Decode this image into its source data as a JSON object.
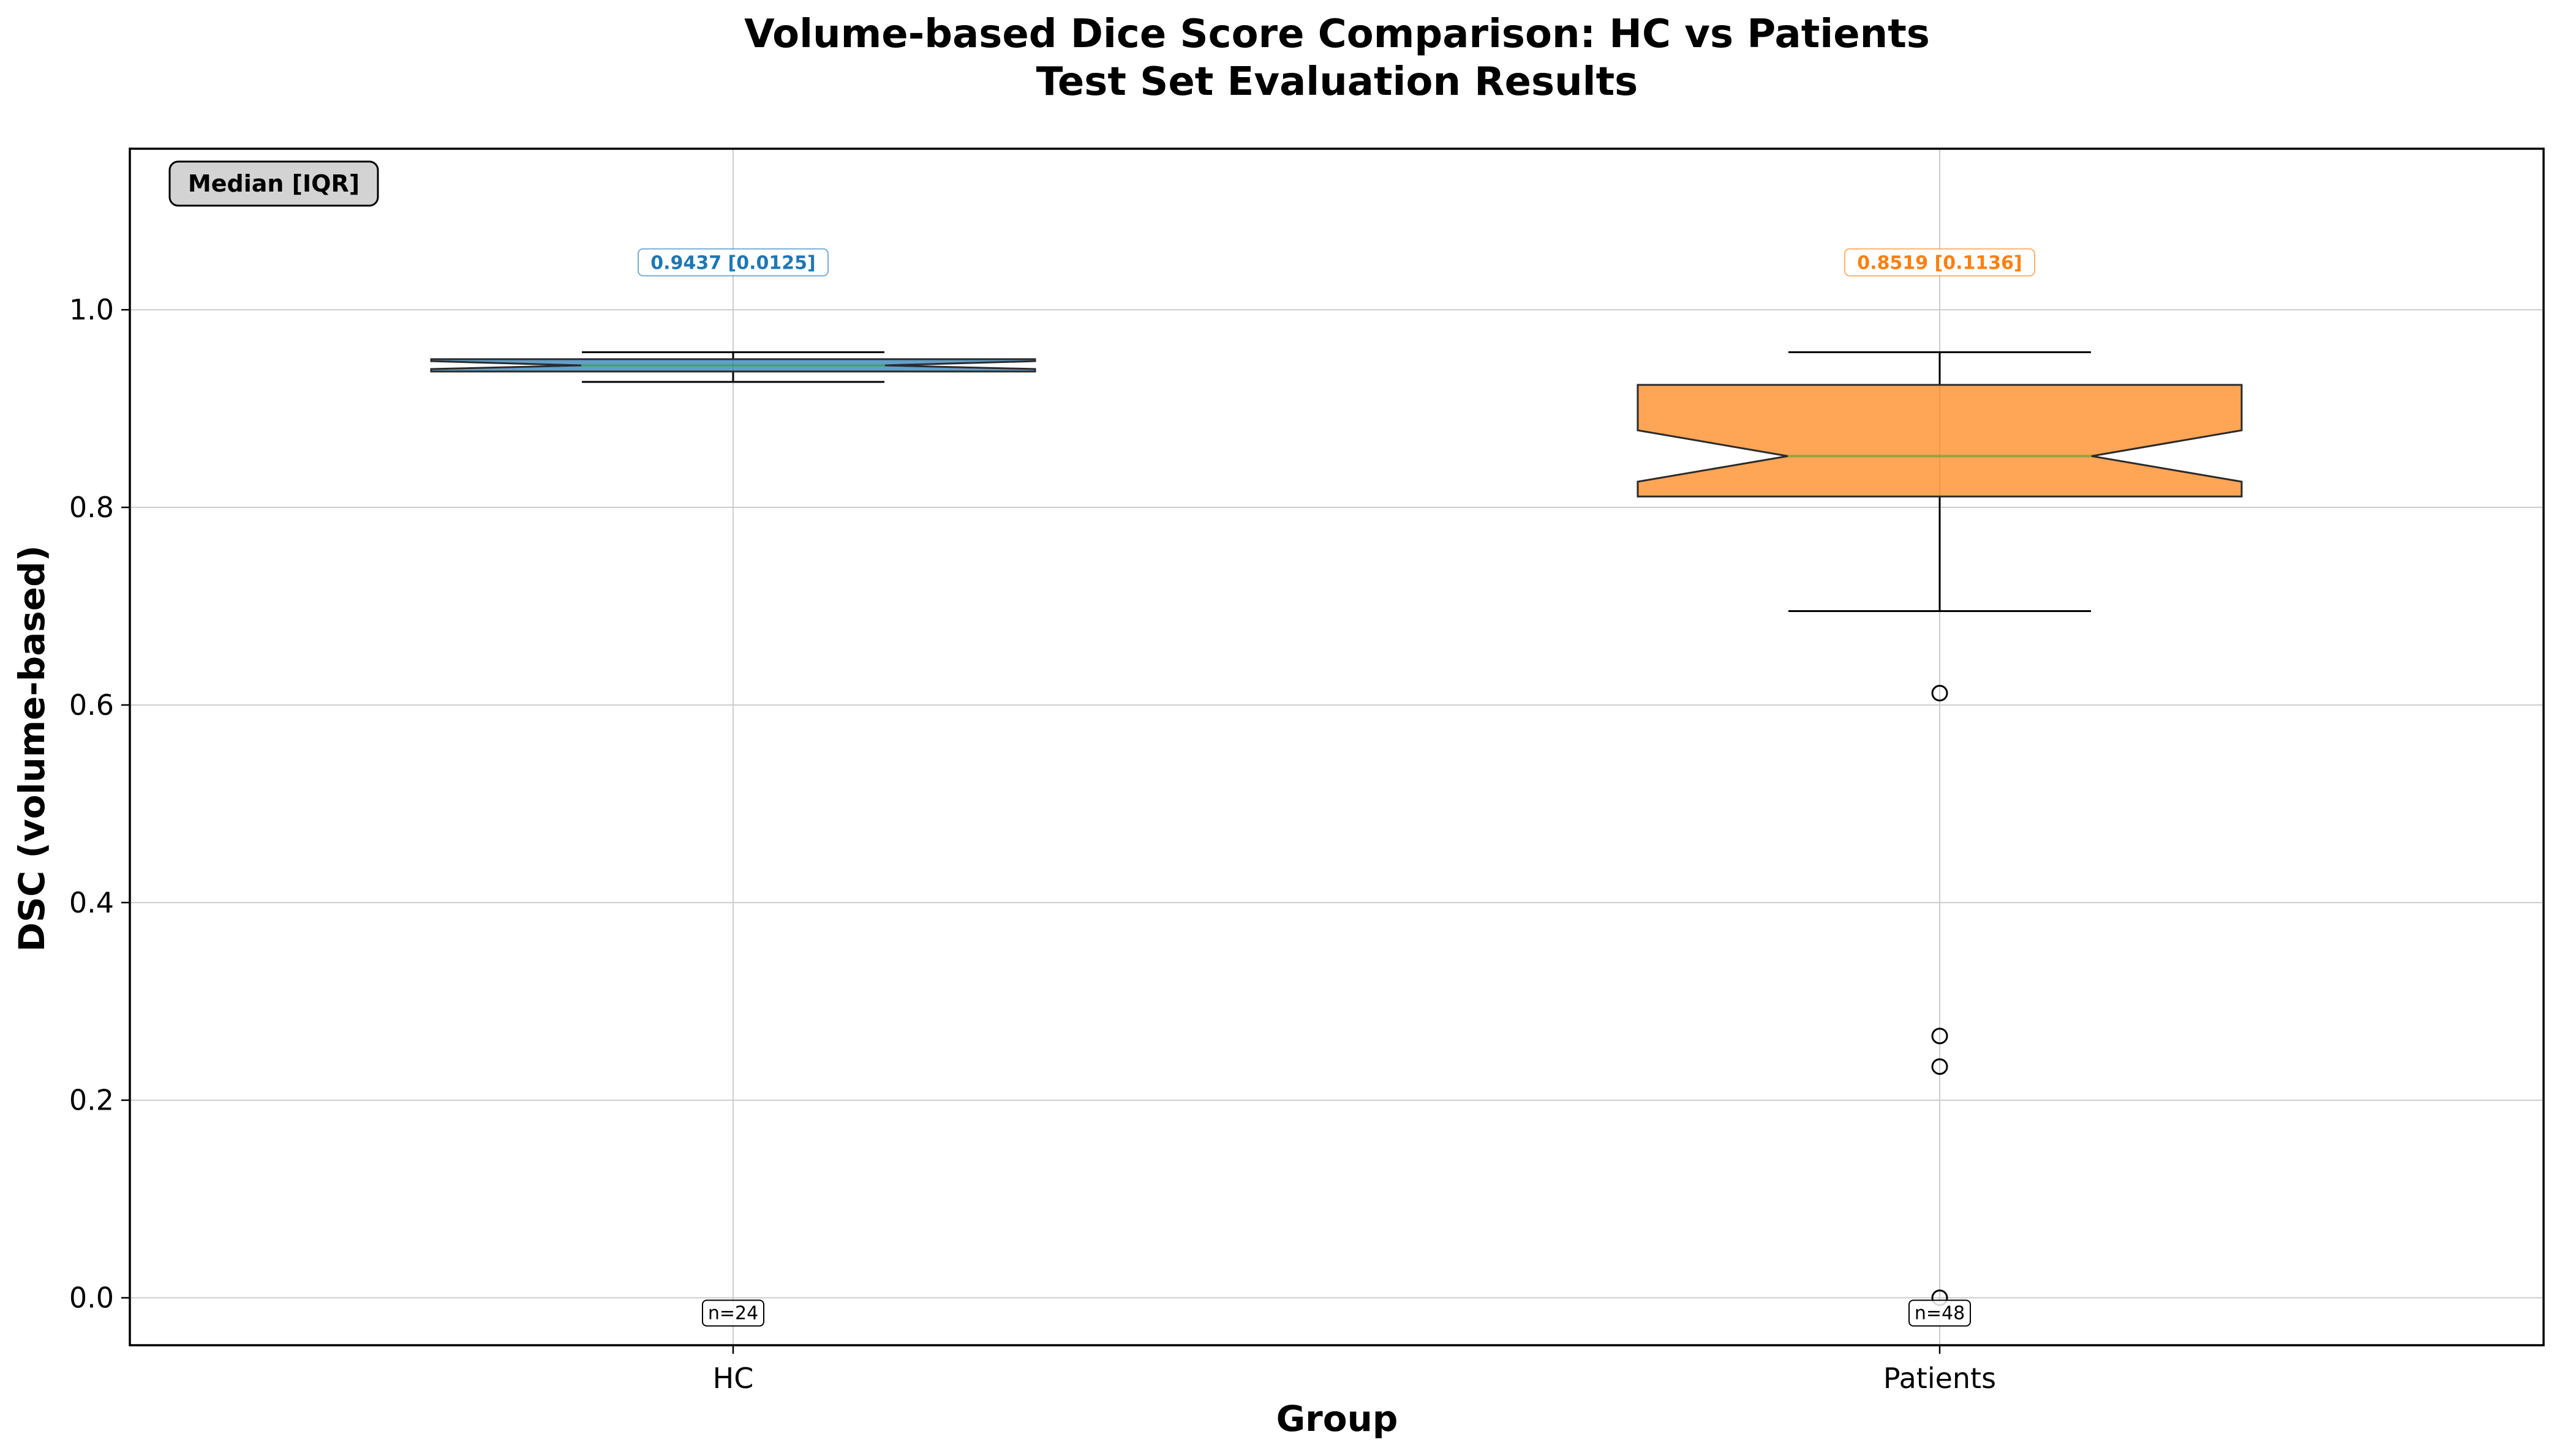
{
  "colors": {
    "hc": "#1f77b4",
    "patients": "#ff7f0e",
    "hc_fill": "#1f77b4",
    "patients_fill": "#ff7f0e",
    "median_line": "#2ca02c",
    "grid": "#cccccc"
  },
  "chart_data": {
    "type": "box",
    "title": "Volume-based Dice Score Comparison: HC vs Patients",
    "subtitle": "Test Set Evaluation Results",
    "xlabel": "Group",
    "ylabel": "DSC (volume-based)",
    "ylim": [
      -0.048,
      1.163
    ],
    "yticks": [
      "0.0",
      "0.2",
      "0.4",
      "0.6",
      "0.8",
      "1.0"
    ],
    "ytick_values": [
      0.0,
      0.2,
      0.4,
      0.6,
      0.8,
      1.0
    ],
    "grid": true,
    "notched": true,
    "legend_box": {
      "text": "Median [IQR]",
      "placement": "top-left"
    },
    "categories": [
      "HC",
      "Patients"
    ],
    "series": [
      {
        "category": "HC",
        "color": "#1f77b4",
        "whisker_low": 0.927,
        "q1": 0.9375,
        "median": 0.9437,
        "q3": 0.95,
        "whisker_high": 0.957,
        "notch_low": 0.94,
        "notch_high": 0.948,
        "outliers": [],
        "stat_label": "0.9437 [0.0125]",
        "n_label": "n=24"
      },
      {
        "category": "Patients",
        "color": "#ff7f0e",
        "whisker_low": 0.695,
        "q1": 0.811,
        "median": 0.8519,
        "q3": 0.924,
        "whisker_high": 0.957,
        "notch_low": 0.826,
        "notch_high": 0.878,
        "outliers": [
          0.612,
          0.265,
          0.234,
          0.0
        ],
        "stat_label": "0.8519 [0.1136]",
        "n_label": "n=48"
      }
    ]
  }
}
